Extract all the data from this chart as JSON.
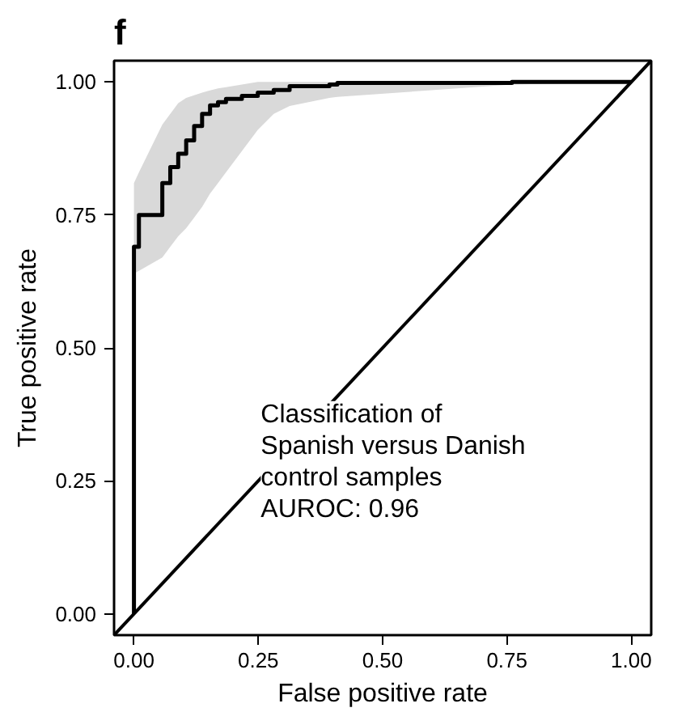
{
  "chart_data": {
    "type": "step",
    "title": "f",
    "xlabel": "False positive rate",
    "ylabel": "True positive rate",
    "xlim": [
      -0.04,
      1.04
    ],
    "ylim": [
      -0.04,
      1.04
    ],
    "xticks": [
      {
        "value": 0,
        "label": "0.00"
      },
      {
        "value": 0.25,
        "label": "0.25"
      },
      {
        "value": 0.5,
        "label": "0.50"
      },
      {
        "value": 0.75,
        "label": "0.75"
      },
      {
        "value": 1,
        "label": "1.00"
      }
    ],
    "yticks": [
      {
        "value": 0,
        "label": "0.00"
      },
      {
        "value": 0.25,
        "label": "0.25"
      },
      {
        "value": 0.5,
        "label": "0.50"
      },
      {
        "value": 0.75,
        "label": "0.75"
      },
      {
        "value": 1,
        "label": "1.00"
      }
    ],
    "grid": false,
    "annotations": [
      "Classification of\nSpanish versus Danish\ncontrol samples\nAUROC: 0.96"
    ],
    "series": [
      {
        "color": "#000000",
        "x": [
          0,
          0,
          0.01,
          0.057,
          0.073,
          0.089,
          0.105,
          0.121,
          0.137,
          0.153,
          0.169,
          0.185,
          0.217,
          0.249,
          0.281,
          0.313,
          0.393,
          0.409,
          0.76,
          1.0
        ],
        "values": [
          0,
          0.69,
          0.75,
          0.81,
          0.84,
          0.865,
          0.89,
          0.917,
          0.94,
          0.956,
          0.962,
          0.968,
          0.974,
          0.98,
          0.985,
          0.992,
          0.995,
          0.998,
          1.0,
          1.0
        ],
        "lower": [
          0.64,
          0.64,
          0.645,
          0.67,
          0.69,
          0.71,
          0.725,
          0.745,
          0.765,
          0.79,
          0.81,
          0.83,
          0.87,
          0.91,
          0.94,
          0.955,
          0.97,
          0.972,
          0.995,
          1.0
        ],
        "upper": [
          0.81,
          0.81,
          0.83,
          0.92,
          0.94,
          0.96,
          0.97,
          0.975,
          0.98,
          0.984,
          0.988,
          0.99,
          0.995,
          1.0,
          1.0,
          1.0,
          1.0,
          1.0,
          1.0,
          1.0
        ]
      },
      {
        "type": "line",
        "color": "#000000",
        "x": [
          -0.04,
          1.04
        ],
        "values": [
          -0.04,
          1.04
        ]
      }
    ]
  }
}
